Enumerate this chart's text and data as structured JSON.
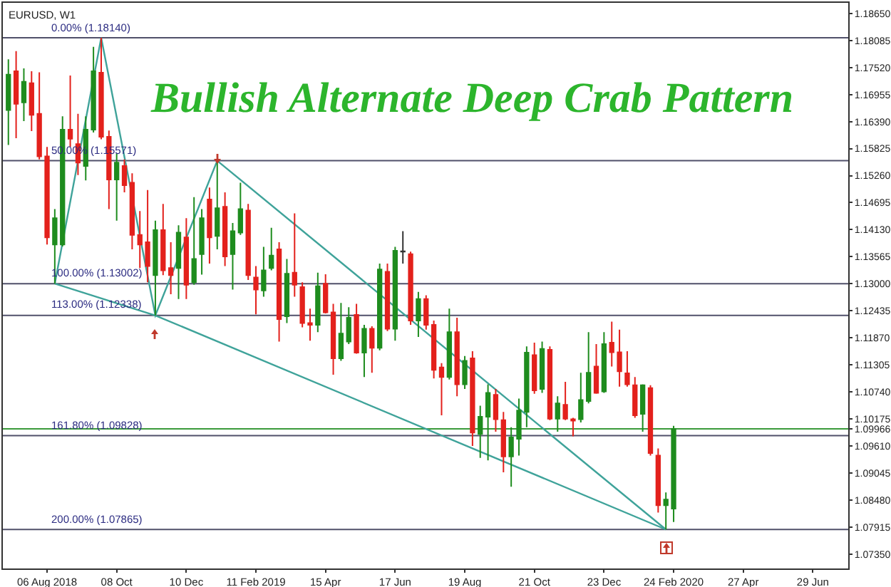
{
  "chart_data": {
    "type": "candlestick",
    "title": "Bullish Alternate Deep Crab Pattern",
    "annotations": [
      "EURUSD, W1"
    ],
    "x": [
      "2018-07-02",
      "2018-07-09",
      "2018-07-16",
      "2018-07-23",
      "2018-07-30",
      "2018-08-06",
      "2018-08-13",
      "2018-08-20",
      "2018-08-27",
      "2018-09-03",
      "2018-09-10",
      "2018-09-17",
      "2018-09-24",
      "2018-10-01",
      "2018-10-08",
      "2018-10-15",
      "2018-10-22",
      "2018-10-29",
      "2018-11-05",
      "2018-11-12",
      "2018-11-19",
      "2018-11-26",
      "2018-12-03",
      "2018-12-10",
      "2018-12-17",
      "2018-12-24",
      "2018-12-31",
      "2019-01-07",
      "2019-01-14",
      "2019-01-21",
      "2019-01-28",
      "2019-02-04",
      "2019-02-11",
      "2019-02-18",
      "2019-02-25",
      "2019-03-04",
      "2019-03-11",
      "2019-03-18",
      "2019-03-25",
      "2019-04-01",
      "2019-04-08",
      "2019-04-15",
      "2019-04-22",
      "2019-04-29",
      "2019-05-06",
      "2019-05-13",
      "2019-05-20",
      "2019-05-27",
      "2019-06-03",
      "2019-06-10",
      "2019-06-17",
      "2019-06-24",
      "2019-07-01",
      "2019-07-08",
      "2019-07-15",
      "2019-07-22",
      "2019-07-29",
      "2019-08-05",
      "2019-08-12",
      "2019-08-19",
      "2019-08-26",
      "2019-09-02",
      "2019-09-09",
      "2019-09-16",
      "2019-09-23",
      "2019-09-30",
      "2019-10-07",
      "2019-10-14",
      "2019-10-21",
      "2019-10-28",
      "2019-11-04",
      "2019-11-11",
      "2019-11-18",
      "2019-11-25",
      "2019-12-02",
      "2019-12-09",
      "2019-12-16",
      "2019-12-23",
      "2019-12-30",
      "2020-01-06",
      "2020-01-13",
      "2020-01-20",
      "2020-01-27",
      "2020-02-03",
      "2020-02-10",
      "2020-02-17",
      "2020-02-24"
    ],
    "ohlc": [
      [
        1.1663,
        1.1769,
        1.159,
        1.1737
      ],
      [
        1.1744,
        1.1786,
        1.1604,
        1.1676
      ],
      [
        1.1679,
        1.175,
        1.164,
        1.1722
      ],
      [
        1.1719,
        1.1744,
        1.1619,
        1.1653
      ],
      [
        1.1655,
        1.1742,
        1.156,
        1.1566
      ],
      [
        1.1566,
        1.1586,
        1.1382,
        1.1397
      ],
      [
        1.1382,
        1.1456,
        1.13,
        1.1437
      ],
      [
        1.1382,
        1.165,
        1.1378,
        1.1622
      ],
      [
        1.1622,
        1.1735,
        1.1586,
        1.1603
      ],
      [
        1.1592,
        1.1655,
        1.1527,
        1.1553
      ],
      [
        1.1546,
        1.165,
        1.1516,
        1.1622
      ],
      [
        1.1622,
        1.1795,
        1.1616,
        1.1744
      ],
      [
        1.1741,
        1.1814,
        1.1602,
        1.1607
      ],
      [
        1.1607,
        1.162,
        1.1456,
        1.1518
      ],
      [
        1.1518,
        1.1572,
        1.1432,
        1.1553
      ],
      [
        1.1546,
        1.156,
        1.1491,
        1.1506
      ],
      [
        1.1511,
        1.1531,
        1.1372,
        1.1402
      ],
      [
        1.1402,
        1.1452,
        1.1333,
        1.1382
      ],
      [
        1.1387,
        1.1496,
        1.1303,
        1.1337
      ],
      [
        1.1318,
        1.1432,
        1.1234,
        1.1412
      ],
      [
        1.1412,
        1.1467,
        1.1318,
        1.1328
      ],
      [
        1.1333,
        1.1387,
        1.1278,
        1.1318
      ],
      [
        1.1333,
        1.1422,
        1.1268,
        1.1407
      ],
      [
        1.1397,
        1.1437,
        1.1268,
        1.1298
      ],
      [
        1.1303,
        1.1481,
        1.1298,
        1.1352
      ],
      [
        1.1362,
        1.1456,
        1.1319,
        1.1437
      ],
      [
        1.1476,
        1.1501,
        1.1342,
        1.1397
      ],
      [
        1.14,
        1.1557,
        1.1372,
        1.1458
      ],
      [
        1.1461,
        1.1491,
        1.1337,
        1.1357
      ],
      [
        1.1362,
        1.1427,
        1.1288,
        1.141
      ],
      [
        1.1407,
        1.1511,
        1.1402,
        1.1456
      ],
      [
        1.1453,
        1.1467,
        1.1308,
        1.1318
      ],
      [
        1.1313,
        1.1337,
        1.1236,
        1.1288
      ],
      [
        1.1286,
        1.1377,
        1.1273,
        1.1328
      ],
      [
        1.1333,
        1.1417,
        1.1328,
        1.1359
      ],
      [
        1.1372,
        1.1387,
        1.1179,
        1.1226
      ],
      [
        1.1232,
        1.1352,
        1.1218,
        1.1321
      ],
      [
        1.1323,
        1.1447,
        1.1273,
        1.1298
      ],
      [
        1.1293,
        1.1303,
        1.1209,
        1.1218
      ],
      [
        1.1218,
        1.1248,
        1.1181,
        1.1214
      ],
      [
        1.1214,
        1.1323,
        1.1199,
        1.1295
      ],
      [
        1.13,
        1.132,
        1.1238,
        1.124
      ],
      [
        1.124,
        1.1258,
        1.111,
        1.1144
      ],
      [
        1.1144,
        1.126,
        1.1139,
        1.1196
      ],
      [
        1.1179,
        1.1251,
        1.1174,
        1.1229
      ],
      [
        1.1235,
        1.1258,
        1.1154,
        1.1156
      ],
      [
        1.1156,
        1.1214,
        1.1105,
        1.1206
      ],
      [
        1.1206,
        1.1211,
        1.1114,
        1.1166
      ],
      [
        1.1166,
        1.1342,
        1.1161,
        1.133
      ],
      [
        1.1325,
        1.1342,
        1.1201,
        1.1206
      ],
      [
        1.1206,
        1.1377,
        1.1181,
        1.1369
      ],
      [
        1.1368,
        1.141,
        1.1342,
        1.1367
      ],
      [
        1.1362,
        1.1367,
        1.1214,
        1.1223
      ],
      [
        1.1223,
        1.1283,
        1.1189,
        1.1268
      ],
      [
        1.1268,
        1.1276,
        1.1204,
        1.1214
      ],
      [
        1.1214,
        1.1223,
        1.1102,
        1.112
      ],
      [
        1.1125,
        1.1134,
        1.1025,
        1.1105
      ],
      [
        1.1105,
        1.1248,
        1.11,
        1.1199
      ],
      [
        1.1199,
        1.1229,
        1.1065,
        1.109
      ],
      [
        1.109,
        1.1149,
        1.108,
        1.1139
      ],
      [
        1.1144,
        1.1159,
        1.0961,
        1.0989
      ],
      [
        1.0986,
        1.1045,
        1.0936,
        1.1022
      ],
      [
        1.1022,
        1.109,
        1.0931,
        1.1072
      ],
      [
        1.1068,
        1.108,
        1.0991,
        1.1017
      ],
      [
        1.1015,
        1.1032,
        1.0906,
        1.0939
      ],
      [
        1.0939,
        1.1,
        1.0876,
        1.0979
      ],
      [
        1.0976,
        1.106,
        1.0941,
        1.1035
      ],
      [
        1.1032,
        1.1169,
        1.1,
        1.1156
      ],
      [
        1.1151,
        1.1177,
        1.107,
        1.1077
      ],
      [
        1.108,
        1.1179,
        1.1072,
        1.1164
      ],
      [
        1.1162,
        1.1169,
        1.1015,
        1.1018
      ],
      [
        1.1018,
        1.1065,
        1.0991,
        1.105
      ],
      [
        1.1047,
        1.1095,
        1.1015,
        1.1018
      ],
      [
        1.1017,
        1.102,
        1.0981,
        1.1014
      ],
      [
        1.1017,
        1.1114,
        1.101,
        1.1057
      ],
      [
        1.1055,
        1.1199,
        1.105,
        1.1114
      ],
      [
        1.1127,
        1.1174,
        1.107,
        1.1072
      ],
      [
        1.1075,
        1.1199,
        1.1072,
        1.1174
      ],
      [
        1.1177,
        1.1221,
        1.1127,
        1.1157
      ],
      [
        1.1157,
        1.1204,
        1.1085,
        1.1117
      ],
      [
        1.1113,
        1.1159,
        1.1085,
        1.109
      ],
      [
        1.1088,
        1.1105,
        1.102,
        1.1025
      ],
      [
        1.1028,
        1.109,
        1.0991,
        1.1088
      ],
      [
        1.1082,
        1.1088,
        1.0941,
        1.0946
      ],
      [
        1.0941,
        1.0956,
        1.0822,
        1.0837
      ],
      [
        1.0837,
        1.0864,
        1.07865,
        1.0849
      ],
      [
        1.083,
        1.1003,
        1.0802,
        1.09966
      ]
    ],
    "colors": [
      "#1e8c1e",
      "#e3211c",
      "#1e8c1e",
      "#e3211c",
      "#e3211c",
      "#e3211c",
      "#1e8c1e",
      "#1e8c1e",
      "#e3211c",
      "#e3211c",
      "#1e8c1e",
      "#1e8c1e",
      "#e3211c",
      "#e3211c",
      "#1e8c1e",
      "#e3211c",
      "#e3211c",
      "#e3211c",
      "#e3211c",
      "#1e8c1e",
      "#e3211c",
      "#e3211c",
      "#1e8c1e",
      "#e3211c",
      "#1e8c1e",
      "#1e8c1e",
      "#e3211c",
      "#1e8c1e",
      "#e3211c",
      "#1e8c1e",
      "#1e8c1e",
      "#e3211c",
      "#e3211c",
      "#1e8c1e",
      "#1e8c1e",
      "#e3211c",
      "#1e8c1e",
      "#e3211c",
      "#e3211c",
      "#e3211c",
      "#1e8c1e",
      "#e3211c",
      "#e3211c",
      "#1e8c1e",
      "#1e8c1e",
      "#e3211c",
      "#1e8c1e",
      "#e3211c",
      "#1e8c1e",
      "#e3211c",
      "#1e8c1e",
      "#333333",
      "#e3211c",
      "#1e8c1e",
      "#e3211c",
      "#e3211c",
      "#e3211c",
      "#1e8c1e",
      "#e3211c",
      "#1e8c1e",
      "#e3211c",
      "#1e8c1e",
      "#1e8c1e",
      "#e3211c",
      "#e3211c",
      "#1e8c1e",
      "#1e8c1e",
      "#1e8c1e",
      "#e3211c",
      "#1e8c1e",
      "#e3211c",
      "#1e8c1e",
      "#e3211c",
      "#e3211c",
      "#1e8c1e",
      "#1e8c1e",
      "#e3211c",
      "#1e8c1e",
      "#e3211c",
      "#e3211c",
      "#e3211c",
      "#e3211c",
      "#1e8c1e",
      "#e3211c",
      "#e3211c",
      "#1e8c1e",
      "#1e8c1e"
    ],
    "series": [
      {
        "type": "line",
        "color": "#3fa39a",
        "x": [
          "2018-08-13",
          "2018-09-24",
          "2018-11-12",
          "2019-01-07",
          "2020-02-17"
        ],
        "values": [
          1.13002,
          1.1814,
          1.12338,
          1.15571,
          1.07865
        ]
      },
      {
        "type": "line",
        "color": "#3fa39a",
        "x": [
          "2018-08-13",
          "2018-11-12",
          "2020-02-17"
        ],
        "values": [
          1.13002,
          1.12338,
          1.07865
        ]
      }
    ],
    "ref_lines": [
      {
        "axis": "y",
        "value": 1.1814,
        "label": "0.00% (1.18140)",
        "color": "#50506a"
      },
      {
        "axis": "y",
        "value": 1.15571,
        "label": "50.00% (1.15571)",
        "color": "#50506a"
      },
      {
        "axis": "y",
        "value": 1.13002,
        "label": "100.00% (1.13002)",
        "color": "#50506a"
      },
      {
        "axis": "y",
        "value": 1.12338,
        "label": "113.00% (1.12338)",
        "color": "#50506a"
      },
      {
        "axis": "y",
        "value": 1.09828,
        "label": "161.80% (1.09828)",
        "color": "#50506a"
      },
      {
        "axis": "y",
        "value": 1.07865,
        "label": "200.00% (1.07865)",
        "color": "#50506a"
      },
      {
        "axis": "y",
        "value": 1.09966,
        "color": "#3a9a3a"
      }
    ],
    "xlim": [
      "2018-06-27",
      "2020-07-31"
    ],
    "xticks": [
      {
        "value": "2018-08-06",
        "label": "06 Aug 2018"
      },
      {
        "value": "2018-10-08",
        "label": "08 Oct"
      },
      {
        "value": "2018-12-10",
        "label": "10 Dec"
      },
      {
        "value": "2019-02-11",
        "label": "11 Feb 2019"
      },
      {
        "value": "2019-04-15",
        "label": "15 Apr"
      },
      {
        "value": "2019-06-17",
        "label": "17 Jun"
      },
      {
        "value": "2019-08-19",
        "label": "19 Aug"
      },
      {
        "value": "2019-10-21",
        "label": "21 Oct"
      },
      {
        "value": "2019-12-23",
        "label": "23 Dec"
      },
      {
        "value": "2020-02-24",
        "label": "24 Feb 2020"
      },
      {
        "value": "2020-04-27",
        "label": "27 Apr"
      },
      {
        "value": "2020-06-29",
        "label": "29 Jun"
      }
    ],
    "ylim": [
      1.0705,
      1.1887
    ],
    "yticks": [
      {
        "value": 1.1865,
        "label": "1.18650"
      },
      {
        "value": 1.18085,
        "label": "1.18085"
      },
      {
        "value": 1.1752,
        "label": "1.17520"
      },
      {
        "value": 1.16955,
        "label": "1.16955"
      },
      {
        "value": 1.1639,
        "label": "1.16390"
      },
      {
        "value": 1.15825,
        "label": "1.15825"
      },
      {
        "value": 1.1526,
        "label": "1.15260"
      },
      {
        "value": 1.14695,
        "label": "1.14695"
      },
      {
        "value": 1.1413,
        "label": "1.14130"
      },
      {
        "value": 1.13565,
        "label": "1.13565"
      },
      {
        "value": 1.13,
        "label": "1.13000"
      },
      {
        "value": 1.12435,
        "label": "1.12435"
      },
      {
        "value": 1.1187,
        "label": "1.11870"
      },
      {
        "value": 1.11305,
        "label": "1.11305"
      },
      {
        "value": 1.1074,
        "label": "1.10740"
      },
      {
        "value": 1.10175,
        "label": "1.10175"
      },
      {
        "value": 1.09966,
        "label": "1.09966"
      },
      {
        "value": 1.0961,
        "label": "1.09610"
      },
      {
        "value": 1.09045,
        "label": "1.09045"
      },
      {
        "value": 1.0848,
        "label": "1.08480"
      },
      {
        "value": 1.07915,
        "label": "1.07915"
      },
      {
        "value": 1.0735,
        "label": "1.07350"
      }
    ],
    "grid": false
  }
}
